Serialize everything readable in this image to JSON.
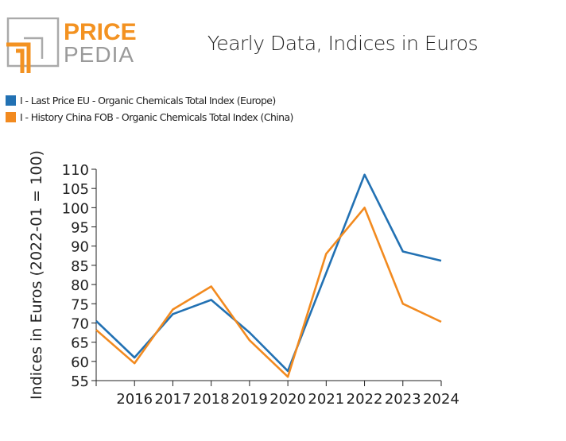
{
  "logo": {
    "line1": "PRICE",
    "line2": "PEDIA",
    "line1_color": "#f39221",
    "line2_color": "#9a9a9a",
    "mark_gray": "#aaaaaa",
    "mark_orange": "#f39221"
  },
  "chart_data": {
    "type": "line",
    "title": "Yearly Data, Indices in Euros",
    "xlabel": "",
    "ylabel": "Indices in Euros (2022-01 = 100)",
    "x": [
      2015,
      2016,
      2017,
      2018,
      2019,
      2020,
      2021,
      2022,
      2023,
      2024
    ],
    "x_tick_labels": [
      "2016",
      "2017",
      "2018",
      "2019",
      "2020",
      "2021",
      "2022",
      "2023",
      "2024"
    ],
    "x_tick_values": [
      2016,
      2017,
      2018,
      2019,
      2020,
      2021,
      2022,
      2023,
      2024
    ],
    "ylim": [
      55,
      110
    ],
    "y_ticks": [
      55,
      60,
      65,
      70,
      75,
      80,
      85,
      90,
      95,
      100,
      105,
      110
    ],
    "grid": false,
    "legend_position": "top-left",
    "series": [
      {
        "name": "I - Last Price EU - Organic Chemicals Total Index (Europe)",
        "color": "#2271b3",
        "values": [
          70.5,
          61.0,
          72.3,
          76.0,
          67.5,
          57.5,
          83.0,
          108.6,
          88.6,
          86.2
        ]
      },
      {
        "name": "I - History China FOB - Organic Chemicals Total Index (China)",
        "color": "#f28a1f",
        "values": [
          68.2,
          59.5,
          73.5,
          79.5,
          65.5,
          56.0,
          88.0,
          100.0,
          75.0,
          70.3
        ]
      }
    ]
  }
}
